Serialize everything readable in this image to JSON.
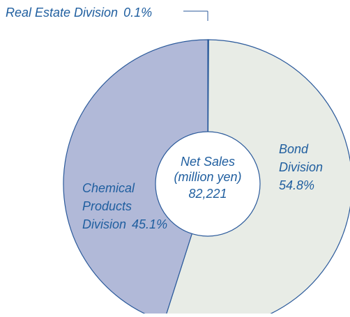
{
  "chart_data": {
    "type": "pie",
    "variant": "donut",
    "slices": [
      {
        "label_lines": [
          "Real Estate Division",
          "0.1%"
        ],
        "value": 0.1,
        "color": "#1a66b8"
      },
      {
        "label_lines": [
          "Bond",
          "Division",
          "54.8%"
        ],
        "value": 54.8,
        "color": "#e8ece6"
      },
      {
        "label_lines": [
          "Chemical",
          "Products",
          "Division",
          "45.1%"
        ],
        "value": 45.1,
        "color": "#b1b9d8"
      }
    ],
    "center": {
      "line1": "Net Sales",
      "line2": "(million yen)",
      "line3": "82,221"
    },
    "text_color": "#1f5e9f",
    "outline_color": "#2b5a9b"
  }
}
